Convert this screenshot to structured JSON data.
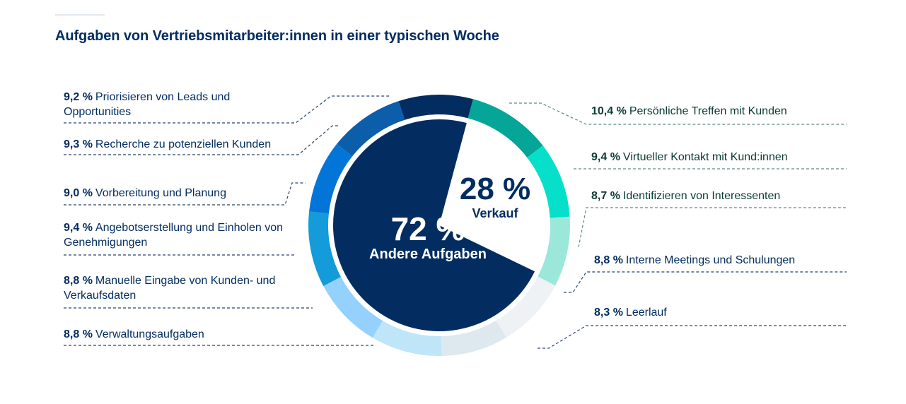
{
  "title": "Aufgaben von Vertriebsmitarbeiter:innen in einer typischen Woche",
  "chart_data": {
    "type": "pie",
    "title": "Aufgaben von Vertriebsmitarbeiter:innen in einer typischen Woche",
    "inner": [
      {
        "label": "Verkauf",
        "value": 28,
        "value_label": "28 %",
        "color": "#ffffff",
        "text_color": "#032d60"
      },
      {
        "label": "Andere Aufgaben",
        "value": 72,
        "value_label": "72 %",
        "color": "#032d60",
        "text_color": "#ffffff"
      }
    ],
    "ring": [
      {
        "value": 10.4,
        "value_label": "10,4 %",
        "label": "Persönliche Treffen mit Kunden",
        "color": "#05a697",
        "group": "Verkauf"
      },
      {
        "value": 9.4,
        "value_label": "9,4 %",
        "label": "Virtueller Kontakt mit Kund:innen",
        "color": "#06e0cb",
        "group": "Verkauf"
      },
      {
        "value": 8.7,
        "value_label": "8,7 %",
        "label": "Identifizieren von Interessenten",
        "color": "#9be8db",
        "group": "Verkauf"
      },
      {
        "value": 8.8,
        "value_label": "8,8 %",
        "label": "Interne Meetings und Schulungen",
        "color": "#eef2f4",
        "group": "Andere Aufgaben"
      },
      {
        "value": 8.3,
        "value_label": "8,3 %",
        "label": "Leerlauf",
        "color": "#dde9ee",
        "group": "Andere Aufgaben"
      },
      {
        "value": 8.8,
        "value_label": "8,8 %",
        "label": "Verwaltungsaufgaben",
        "color": "#bfe5f8",
        "group": "Andere Aufgaben"
      },
      {
        "value": 8.8,
        "value_label": "8,8 %",
        "label": "Manuelle Eingabe von Kunden- und Verkaufsdaten",
        "color": "#94d1fc",
        "group": "Andere Aufgaben"
      },
      {
        "value": 9.4,
        "value_label": "9,4 %",
        "label": "Angebotserstellung und Einholen von Genehmigungen",
        "color": "#149bd9",
        "group": "Andere Aufgaben"
      },
      {
        "value": 9.0,
        "value_label": "9,0 %",
        "label": "Vorbereitung und Planung",
        "color": "#0375d9",
        "group": "Andere Aufgaben"
      },
      {
        "value": 9.3,
        "value_label": "9,3 %",
        "label": "Recherche zu potenziellen Kunden",
        "color": "#0c5eab",
        "group": "Andere Aufgaben"
      },
      {
        "value": 9.2,
        "value_label": "9,2 %",
        "label": "Priorisieren von Leads und Opportunities",
        "color": "#032d60",
        "group": "Andere Aufgaben"
      }
    ]
  }
}
